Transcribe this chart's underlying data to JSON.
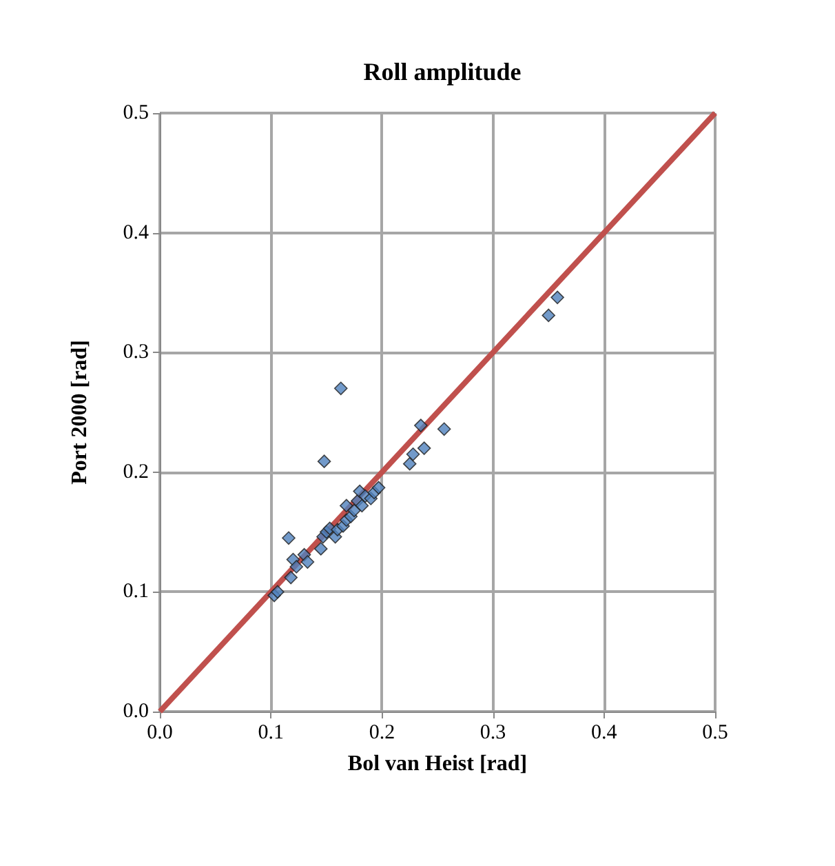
{
  "chart_data": {
    "type": "scatter",
    "title": "Roll amplitude",
    "xlabel": "Bol van Heist [rad]",
    "ylabel": "Port 2000 [rad]",
    "xlim": [
      0,
      0.5
    ],
    "ylim": [
      0,
      0.5
    ],
    "xticks": [
      {
        "value": 0,
        "label": "0.0"
      },
      {
        "value": 0.1,
        "label": "0.1"
      },
      {
        "value": 0.2,
        "label": "0.2"
      },
      {
        "value": 0.3,
        "label": "0.3"
      },
      {
        "value": 0.4,
        "label": "0.4"
      },
      {
        "value": 0.5,
        "label": "0.5"
      }
    ],
    "yticks": [
      {
        "value": 0,
        "label": "0.0"
      },
      {
        "value": 0.1,
        "label": "0.1"
      },
      {
        "value": 0.2,
        "label": "0.2"
      },
      {
        "value": 0.3,
        "label": "0.3"
      },
      {
        "value": 0.4,
        "label": "0.4"
      },
      {
        "value": 0.5,
        "label": "0.5"
      }
    ],
    "grid": true,
    "marker": "diamond",
    "series": [
      {
        "color": "#4f81bd",
        "x": [
          0.103,
          0.106,
          0.116,
          0.118,
          0.12,
          0.123,
          0.13,
          0.133,
          0.145,
          0.147,
          0.148,
          0.15,
          0.153,
          0.158,
          0.16,
          0.163,
          0.165,
          0.168,
          0.168,
          0.172,
          0.175,
          0.178,
          0.18,
          0.182,
          0.185,
          0.19,
          0.193,
          0.197,
          0.225,
          0.228,
          0.235,
          0.238,
          0.256,
          0.35,
          0.358
        ],
        "values": [
          0.097,
          0.1,
          0.145,
          0.112,
          0.127,
          0.121,
          0.131,
          0.125,
          0.136,
          0.146,
          0.209,
          0.15,
          0.153,
          0.146,
          0.152,
          0.27,
          0.155,
          0.16,
          0.172,
          0.163,
          0.168,
          0.176,
          0.184,
          0.172,
          0.18,
          0.178,
          0.183,
          0.187,
          0.207,
          0.215,
          0.239,
          0.22,
          0.236,
          0.331,
          0.346
        ]
      },
      {
        "type": "line",
        "marker": "none",
        "color": "#c0504d",
        "x": [
          0,
          0.5
        ],
        "values": [
          0,
          0.5
        ]
      }
    ]
  }
}
